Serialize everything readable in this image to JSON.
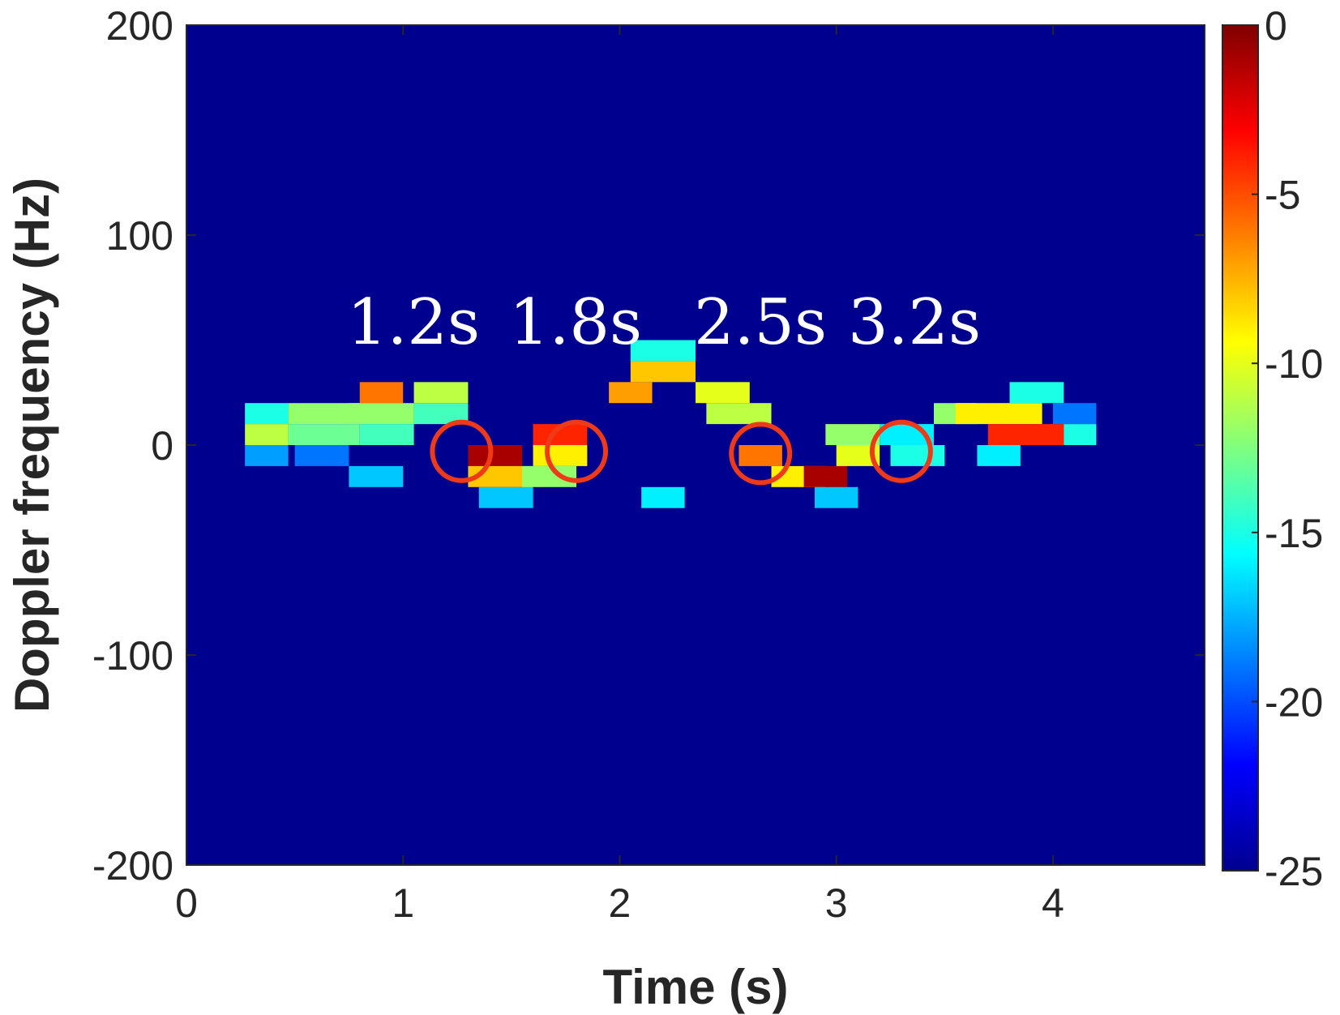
{
  "chart_data": {
    "type": "heatmap",
    "title": "",
    "xlabel": "Time (s)",
    "ylabel": "Doppler frequency (Hz)",
    "xlim": [
      0,
      4.7
    ],
    "ylim": [
      -200,
      200
    ],
    "x_ticks": [
      "0",
      "1",
      "2",
      "3",
      "4"
    ],
    "y_ticks": [
      "200",
      "100",
      "0",
      "-100",
      "-200"
    ],
    "grid": false,
    "colormap": "jet",
    "colorbar": {
      "range": [
        -25,
        0
      ],
      "ticks": [
        "0",
        "-5",
        "-10",
        "-15",
        "-20",
        "-25"
      ],
      "placement": "right"
    },
    "background_level_db": -25,
    "cells": [
      {
        "t": [
          0.27,
          0.47
        ],
        "f": [
          10,
          20
        ],
        "db": -15
      },
      {
        "t": [
          0.27,
          0.47
        ],
        "f": [
          0,
          10
        ],
        "db": -11
      },
      {
        "t": [
          0.27,
          0.47
        ],
        "f": [
          -10,
          0
        ],
        "db": -18
      },
      {
        "t": [
          0.47,
          0.8
        ],
        "f": [
          10,
          20
        ],
        "db": -12
      },
      {
        "t": [
          0.47,
          0.8
        ],
        "f": [
          0,
          10
        ],
        "db": -13
      },
      {
        "t": [
          0.5,
          0.75
        ],
        "f": [
          -10,
          0
        ],
        "db": -19
      },
      {
        "t": [
          0.8,
          1.0
        ],
        "f": [
          20,
          30
        ],
        "db": -6
      },
      {
        "t": [
          0.75,
          1.05
        ],
        "f": [
          10,
          20
        ],
        "db": -12
      },
      {
        "t": [
          0.8,
          1.05
        ],
        "f": [
          0,
          10
        ],
        "db": -14
      },
      {
        "t": [
          0.75,
          1.0
        ],
        "f": [
          -20,
          -10
        ],
        "db": -17
      },
      {
        "t": [
          1.05,
          1.3
        ],
        "f": [
          20,
          30
        ],
        "db": -11
      },
      {
        "t": [
          1.05,
          1.3
        ],
        "f": [
          10,
          20
        ],
        "db": -14
      },
      {
        "t": [
          1.3,
          1.55
        ],
        "f": [
          -10,
          0
        ],
        "db": -1
      },
      {
        "t": [
          1.3,
          1.6
        ],
        "f": [
          -20,
          -10
        ],
        "db": -8
      },
      {
        "t": [
          1.35,
          1.6
        ],
        "f": [
          -30,
          -20
        ],
        "db": -17
      },
      {
        "t": [
          1.6,
          1.85
        ],
        "f": [
          0,
          10
        ],
        "db": -4
      },
      {
        "t": [
          1.6,
          1.85
        ],
        "f": [
          -10,
          0
        ],
        "db": -9
      },
      {
        "t": [
          1.55,
          1.8
        ],
        "f": [
          -20,
          -10
        ],
        "db": -12
      },
      {
        "t": [
          1.95,
          2.15
        ],
        "f": [
          20,
          30
        ],
        "db": -7
      },
      {
        "t": [
          2.05,
          2.35
        ],
        "f": [
          30,
          40
        ],
        "db": -8
      },
      {
        "t": [
          2.05,
          2.35
        ],
        "f": [
          40,
          50
        ],
        "db": -15
      },
      {
        "t": [
          2.1,
          2.3
        ],
        "f": [
          -30,
          -20
        ],
        "db": -16
      },
      {
        "t": [
          2.35,
          2.6
        ],
        "f": [
          20,
          30
        ],
        "db": -10
      },
      {
        "t": [
          2.4,
          2.7
        ],
        "f": [
          10,
          20
        ],
        "db": -11
      },
      {
        "t": [
          2.55,
          2.75
        ],
        "f": [
          -10,
          0
        ],
        "db": -6
      },
      {
        "t": [
          2.7,
          2.95
        ],
        "f": [
          -20,
          -10
        ],
        "db": -9
      },
      {
        "t": [
          2.85,
          3.05
        ],
        "f": [
          -20,
          -10
        ],
        "db": -1
      },
      {
        "t": [
          2.95,
          3.2
        ],
        "f": [
          0,
          10
        ],
        "db": -12
      },
      {
        "t": [
          3.0,
          3.2
        ],
        "f": [
          -10,
          0
        ],
        "db": -10
      },
      {
        "t": [
          2.9,
          3.1
        ],
        "f": [
          -30,
          -20
        ],
        "db": -17
      },
      {
        "t": [
          3.2,
          3.45
        ],
        "f": [
          0,
          10
        ],
        "db": -16
      },
      {
        "t": [
          3.25,
          3.5
        ],
        "f": [
          -10,
          0
        ],
        "db": -15
      },
      {
        "t": [
          3.45,
          3.65
        ],
        "f": [
          10,
          20
        ],
        "db": -12
      },
      {
        "t": [
          3.55,
          3.95
        ],
        "f": [
          10,
          20
        ],
        "db": -9
      },
      {
        "t": [
          3.7,
          4.05
        ],
        "f": [
          0,
          10
        ],
        "db": -4
      },
      {
        "t": [
          3.65,
          3.85
        ],
        "f": [
          -10,
          0
        ],
        "db": -16
      },
      {
        "t": [
          3.8,
          4.05
        ],
        "f": [
          20,
          30
        ],
        "db": -15
      },
      {
        "t": [
          4.05,
          4.2
        ],
        "f": [
          0,
          10
        ],
        "db": -15
      },
      {
        "t": [
          4.0,
          4.2
        ],
        "f": [
          10,
          20
        ],
        "db": -19
      }
    ],
    "annotations": [
      {
        "label": "1.2s",
        "t": 1.27,
        "f": -3
      },
      {
        "label": "1.8s",
        "t": 1.8,
        "f": -3
      },
      {
        "label": "2.5s",
        "t": 2.65,
        "f": -4
      },
      {
        "label": "3.2s",
        "t": 3.3,
        "f": -3
      }
    ],
    "annotation_color": "#f03a17"
  }
}
